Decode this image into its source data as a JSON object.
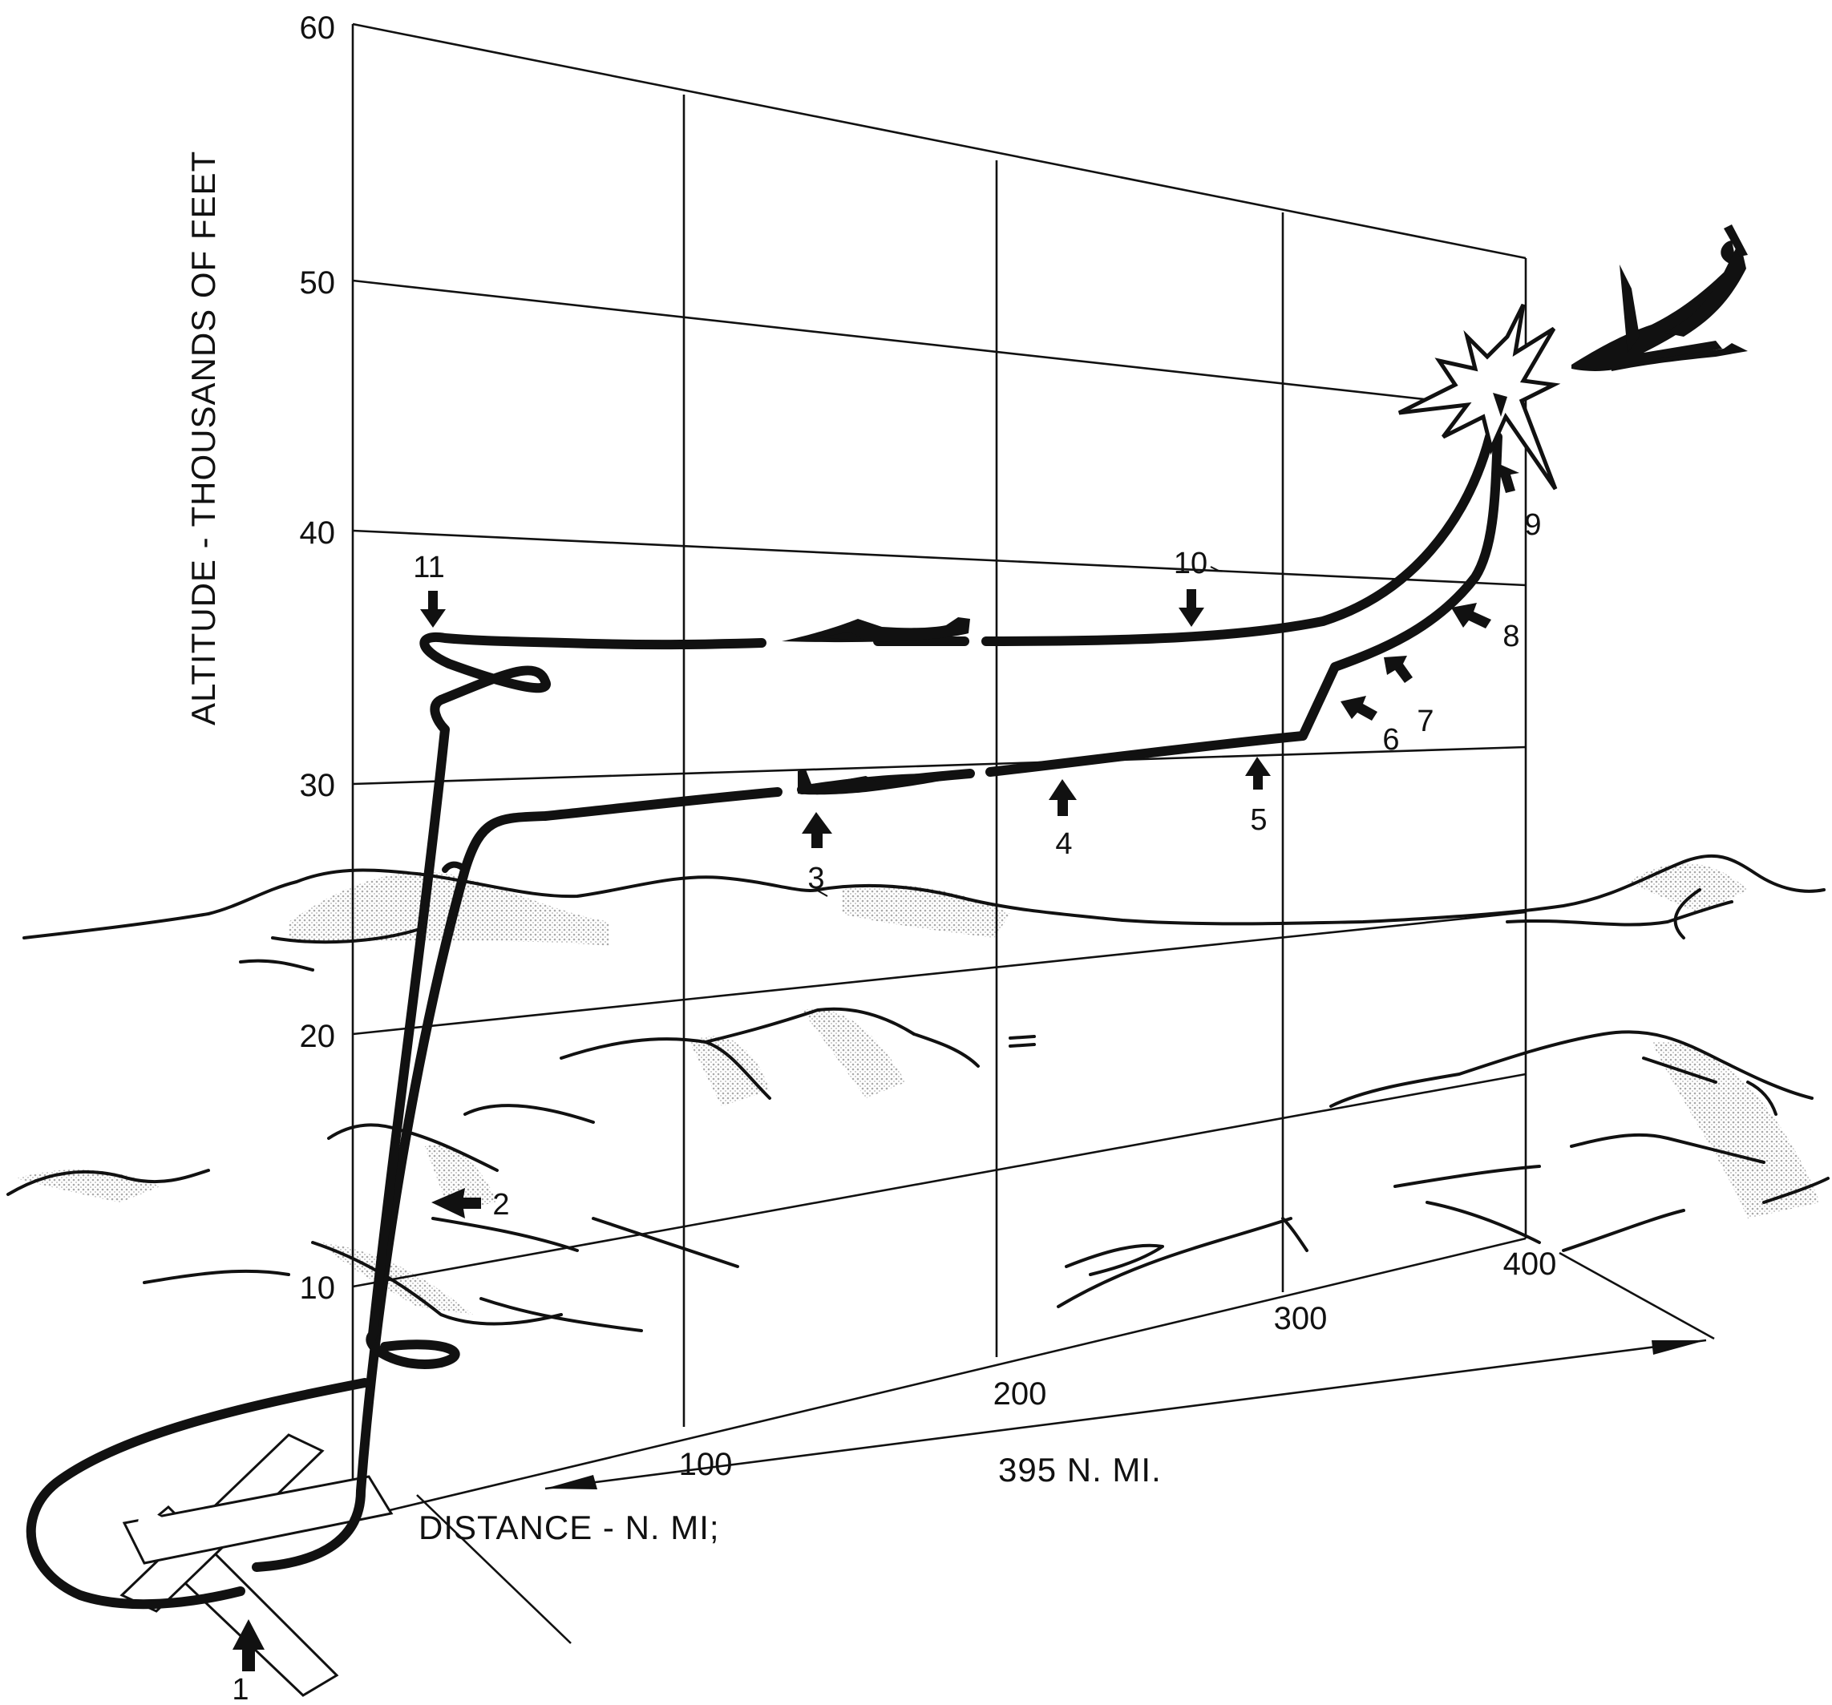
{
  "axes": {
    "y_title": "ALTITUDE - THOUSANDS OF FEET",
    "x_title": "DISTANCE - N. MI;",
    "y_ticks": [
      "60",
      "50",
      "40",
      "30",
      "20",
      "10"
    ],
    "x_ticks": [
      "100",
      "200",
      "300",
      "400"
    ]
  },
  "dimension_label": "395 N. MI.",
  "callouts": [
    "1",
    "2",
    "3",
    "4",
    "5",
    "6",
    "7",
    "8",
    "9",
    "10",
    "11"
  ],
  "icons": [
    "interceptor-aircraft-icon",
    "target-aircraft-icon",
    "explosion-icon",
    "runway-icon",
    "arrow-icon"
  ],
  "colors": {
    "ink": "#111111",
    "terrain_shade": "#c8c8c8",
    "background": "#ffffff"
  }
}
